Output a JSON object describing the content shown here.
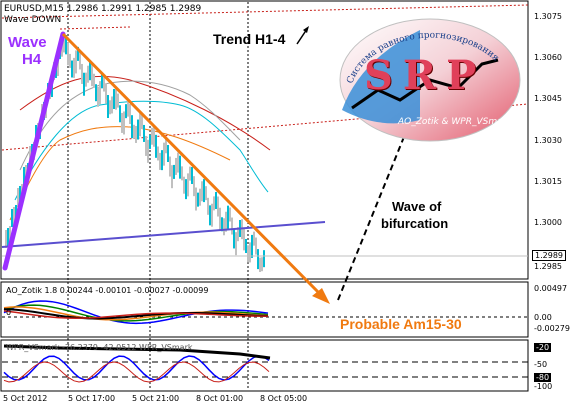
{
  "chart": {
    "symbol_line": "EURUSD,M15  1.2986 1.2991 1.2985 1.2989",
    "wave_down_label": "Wave DOWN",
    "annotations": {
      "wave_h4_line1": "Wave",
      "wave_h4_line2": "H4",
      "trend": "Trend H1-4",
      "bifurcation_line1": "Wave of",
      "bifurcation_line2": "bifurcation",
      "probable": "Probable Am15-30"
    },
    "price_axis": [
      "1.3075",
      "1.3060",
      "1.3045",
      "1.3030",
      "1.3015",
      "1.3000",
      "1.2989",
      "1.2985"
    ],
    "current_price": "1.2989"
  },
  "logo": {
    "letters": "SRP",
    "arc_text": "Система равного прогнозирования",
    "bottom_text": "AO_Zotik & WPR_VSmark"
  },
  "ao_panel": {
    "header": "AO_Zotik  1.8  0.00244 -0.00101 -0.00027 -0.00099",
    "axis": [
      "0.00497",
      "0.00",
      "-0.00279"
    ],
    "zero_label": "0"
  },
  "wpr_panel": {
    "header": "WPR_VSmark  -76.2379 -42.0512  WPR_VSmark",
    "axis": [
      "-20",
      "-50",
      "-80",
      "-100"
    ]
  },
  "time_axis": [
    "5 Oct 2012",
    "5 Oct 17:00",
    "5 Oct 21:00",
    "8 Oct 01:00",
    "8 Oct 05:00"
  ],
  "colors": {
    "purple": "#9b30ff",
    "orange": "#f07a10",
    "cyan": "#00bcd4",
    "red": "#c8201a",
    "gray": "#c0c0c0"
  }
}
